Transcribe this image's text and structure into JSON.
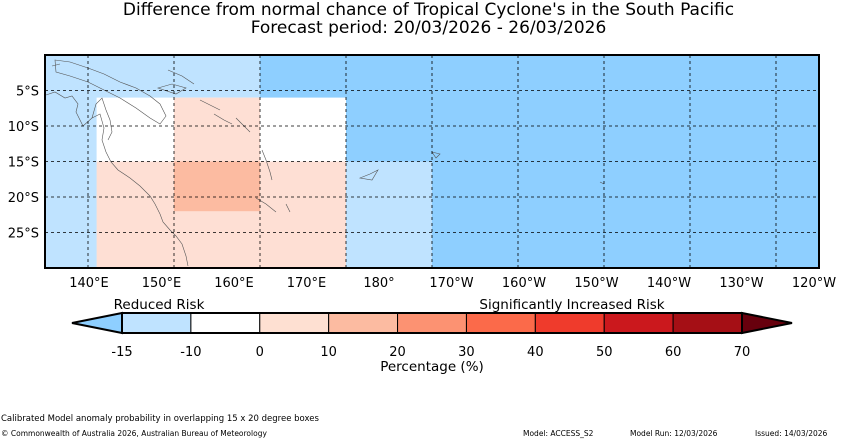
{
  "title": "Difference from normal chance of Tropical Cyclone's in the South Pacific",
  "subtitle": "Forecast period: 20/03/2026 - 26/03/2026",
  "map": {
    "lon_range": [
      135,
      225
    ],
    "lat_range": [
      0,
      -30
    ],
    "lat_ticks": [
      {
        "lat": -5,
        "label": "5°S"
      },
      {
        "lat": -10,
        "label": "10°S"
      },
      {
        "lat": -15,
        "label": "15°S"
      },
      {
        "lat": -20,
        "label": "20°S"
      },
      {
        "lat": -25,
        "label": "25°S"
      }
    ],
    "lon_ticks": [
      {
        "lon": 140,
        "label": "140°E"
      },
      {
        "lon": 150,
        "label": "150°E"
      },
      {
        "lon": 160,
        "label": "160°E"
      },
      {
        "lon": 170,
        "label": "170°E"
      },
      {
        "lon": 180,
        "label": "180°"
      },
      {
        "lon": 190,
        "label": "170°W"
      },
      {
        "lon": 200,
        "label": "160°W"
      },
      {
        "lon": 210,
        "label": "150°W"
      },
      {
        "lon": 220,
        "label": "140°W"
      },
      {
        "lon": 230,
        "label": "130°W"
      },
      {
        "lon": 240,
        "label": "120°W"
      }
    ],
    "cells": [
      {
        "lon": [
          135,
          160
        ],
        "lat": [
          0,
          -30
        ],
        "color": "#bfe3ff"
      },
      {
        "lon": [
          160,
          225
        ],
        "lat": [
          0,
          -30
        ],
        "color": "#8ecfff"
      },
      {
        "lon": [
          170,
          180
        ],
        "lat": [
          -15,
          -30
        ],
        "color": "#bfe3ff"
      },
      {
        "lon": [
          141,
          170
        ],
        "lat": [
          -6,
          -15
        ],
        "color": "#ffffff"
      },
      {
        "lon": [
          141,
          170
        ],
        "lat": [
          -15,
          -30
        ],
        "color": "#fedfd4"
      },
      {
        "lon": [
          150,
          160
        ],
        "lat": [
          -6,
          -22
        ],
        "color": "#fedfd4"
      },
      {
        "lon": [
          150,
          160
        ],
        "lat": [
          -15,
          -22
        ],
        "color": "#fcbba1"
      }
    ]
  },
  "legend": {
    "reduced_label": "Reduced Risk",
    "increased_label": "Significantly Increased Risk",
    "axis_label": "Percentage (%)",
    "ticks": [
      "-15",
      "-10",
      "0",
      "10",
      "20",
      "30",
      "40",
      "50",
      "60",
      "70"
    ],
    "under_color": "#8ecfff",
    "over_color": "#67000d",
    "colors": [
      "#bfe3ff",
      "#ffffff",
      "#fee0d2",
      "#fcbba1",
      "#fc9272",
      "#fb6a4a",
      "#ef3b2c",
      "#cb181d",
      "#a50f15"
    ]
  },
  "footer": {
    "note": "Calibrated Model anomaly probability in overlapping 15 x 20 degree boxes",
    "copyright": "© Commonwealth of Australia 2026, Australian Bureau of Meteorology",
    "model": "Model: ACCESS_S2",
    "model_run": "Model Run: 12/03/2026",
    "issued": "Issued: 14/03/2026"
  }
}
